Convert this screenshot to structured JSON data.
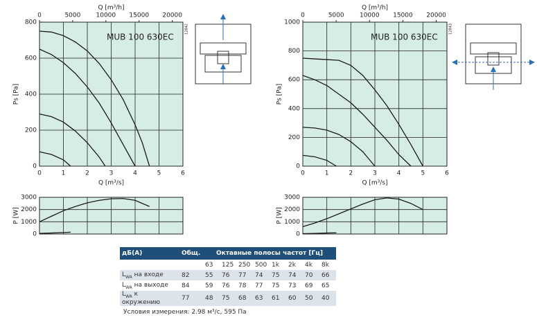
{
  "chart_data": [
    {
      "type": "line",
      "label": "MUB 100 630EC",
      "code": "12842",
      "xlabel": "Q [m³/s]",
      "ylabel": "Ps [Pa]",
      "x2label": "Q [m³/h]",
      "xlim": [
        0,
        6
      ],
      "ylim": [
        0,
        800
      ],
      "xticks": [
        0,
        1,
        2,
        3,
        4,
        5,
        6
      ],
      "yticks": [
        0,
        200,
        400,
        600,
        800
      ],
      "x2lim": [
        0,
        21600
      ],
      "x2ticks": [
        0,
        5000,
        10000,
        15000,
        20000
      ],
      "grid": true,
      "show_xtick_labels": true,
      "color": "#1a1a1a",
      "series": [
        {
          "x": [
            0,
            0.5,
            1,
            1.5,
            2,
            2.5,
            3,
            3.5,
            4,
            4.3,
            4.6
          ],
          "values": [
            750,
            745,
            725,
            690,
            640,
            570,
            480,
            370,
            230,
            130,
            0
          ]
        },
        {
          "x": [
            0,
            0.5,
            1,
            1.5,
            2,
            2.5,
            3,
            3.5,
            4
          ],
          "values": [
            650,
            620,
            575,
            515,
            440,
            350,
            240,
            120,
            0
          ]
        },
        {
          "x": [
            0,
            0.5,
            1,
            1.5,
            2,
            2.5,
            2.75
          ],
          "values": [
            290,
            275,
            245,
            195,
            130,
            50,
            0
          ]
        },
        {
          "x": [
            0,
            0.5,
            1,
            1.3
          ],
          "values": [
            80,
            65,
            35,
            0
          ]
        }
      ]
    },
    {
      "type": "line",
      "ylabel": "P [W]",
      "xlim": [
        0,
        6
      ],
      "ylim": [
        0,
        3000
      ],
      "xticks": [
        0,
        1,
        2,
        3,
        4,
        5,
        6
      ],
      "yticks": [
        0,
        1000,
        2000,
        3000
      ],
      "grid": true,
      "show_xtick_labels": false,
      "color": "#1a1a1a",
      "series": [
        {
          "x": [
            0,
            0.5,
            1,
            1.5,
            2,
            2.5,
            3,
            3.5,
            4,
            4.6
          ],
          "values": [
            1000,
            1450,
            1900,
            2250,
            2550,
            2750,
            2880,
            2900,
            2750,
            2250
          ]
        },
        {
          "x": [
            0,
            0.5,
            1,
            1.3
          ],
          "values": [
            50,
            80,
            120,
            150
          ]
        }
      ]
    },
    {
      "type": "line",
      "label": "MUB 100 630EC",
      "code": "12843",
      "xlabel": "Q [m³/s]",
      "ylabel": "Ps [Pa]",
      "x2label": "Q [m³/h]",
      "xlim": [
        0,
        6
      ],
      "ylim": [
        0,
        1000
      ],
      "xticks": [
        0,
        1,
        2,
        3,
        4,
        5,
        6
      ],
      "yticks": [
        0,
        200,
        400,
        600,
        800,
        1000
      ],
      "x2lim": [
        0,
        21600
      ],
      "x2ticks": [
        0,
        5000,
        10000,
        15000,
        20000
      ],
      "grid": true,
      "show_xtick_labels": true,
      "color": "#1a1a1a",
      "series": [
        {
          "x": [
            0,
            0.5,
            1,
            1.5,
            2,
            2.5,
            3,
            3.5,
            4,
            4.5,
            5
          ],
          "values": [
            750,
            745,
            740,
            735,
            700,
            630,
            530,
            420,
            290,
            150,
            0
          ]
        },
        {
          "x": [
            0,
            0.5,
            1,
            1.5,
            2,
            2.5,
            3,
            3.5,
            4,
            4.5
          ],
          "values": [
            630,
            600,
            560,
            500,
            440,
            360,
            270,
            180,
            80,
            0
          ]
        },
        {
          "x": [
            0,
            0.5,
            1,
            1.5,
            2,
            2.5,
            3
          ],
          "values": [
            270,
            265,
            250,
            220,
            170,
            100,
            0
          ]
        },
        {
          "x": [
            0,
            0.5,
            1,
            1.4
          ],
          "values": [
            75,
            65,
            40,
            0
          ]
        }
      ]
    },
    {
      "type": "line",
      "ylabel": "P [W]",
      "xlim": [
        0,
        6
      ],
      "ylim": [
        0,
        3000
      ],
      "xticks": [
        0,
        1,
        2,
        3,
        4,
        5,
        6
      ],
      "yticks": [
        0,
        1000,
        2000,
        3000
      ],
      "grid": true,
      "show_xtick_labels": false,
      "color": "#1a1a1a",
      "series": [
        {
          "x": [
            0,
            0.5,
            1,
            1.5,
            2,
            2.5,
            3,
            3.5,
            4,
            4.5,
            5
          ],
          "values": [
            600,
            900,
            1250,
            1650,
            2050,
            2450,
            2800,
            2950,
            2850,
            2500,
            2000
          ]
        },
        {
          "x": [
            0,
            0.5,
            1,
            1.4
          ],
          "values": [
            30,
            50,
            80,
            100
          ]
        }
      ]
    }
  ],
  "table": {
    "header": [
      "дБ(A)",
      "Общ.",
      "Октавные полосы частот [Гц]"
    ],
    "bands": [
      "63",
      "125",
      "250",
      "500",
      "1k",
      "2k",
      "4k",
      "8k"
    ],
    "rows": [
      {
        "symbol": "L",
        "sub": "WA",
        "label": "на входе",
        "total": "82",
        "values": [
          "55",
          "76",
          "77",
          "74",
          "75",
          "74",
          "70",
          "66"
        ]
      },
      {
        "symbol": "L",
        "sub": "WA",
        "label": "на выходе",
        "total": "84",
        "values": [
          "59",
          "76",
          "78",
          "77",
          "75",
          "73",
          "69",
          "65"
        ]
      },
      {
        "symbol": "L",
        "sub": "WA",
        "label": "к окружению",
        "total": "77",
        "values": [
          "48",
          "75",
          "68",
          "63",
          "61",
          "60",
          "50",
          "40"
        ]
      }
    ],
    "note": "Условия измерения: 2.98 м³/с, 595 Па"
  }
}
